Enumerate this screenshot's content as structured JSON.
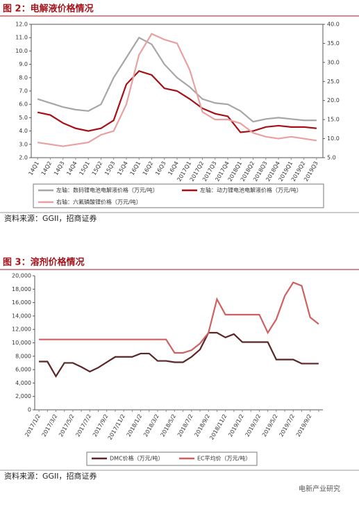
{
  "chart_data": [
    {
      "type": "line",
      "title": "图 2：电解液价格情况",
      "categories": [
        "14Q1",
        "14Q2",
        "14Q3",
        "14Q4",
        "15Q1",
        "15Q2",
        "15Q3",
        "15Q4",
        "16Q1",
        "16Q2",
        "16Q3",
        "16Q4",
        "2017Q1",
        "2017Q2",
        "2017Q3",
        "2017Q4",
        "2018Q1",
        "2018Q2",
        "2018Q3",
        "2018Q4",
        "2019Q1",
        "2019Q2",
        "2019Q3"
      ],
      "ylim": [
        2,
        12
      ],
      "yticks": [
        {
          "value": 2,
          "label": "2.0"
        },
        {
          "value": 3,
          "label": "3.0"
        },
        {
          "value": 4,
          "label": "4.0"
        },
        {
          "value": 5,
          "label": "5.0"
        },
        {
          "value": 6,
          "label": "6.0"
        },
        {
          "value": 7,
          "label": "7.0"
        },
        {
          "value": 8,
          "label": "8.0"
        },
        {
          "value": 9,
          "label": "9.0"
        },
        {
          "value": 10,
          "label": "10.0"
        },
        {
          "value": 11,
          "label": "11.0"
        },
        {
          "value": 12,
          "label": "12.0"
        }
      ],
      "y2lim": [
        5,
        40
      ],
      "y2ticks": [
        {
          "value": 5,
          "label": "5.0"
        },
        {
          "value": 10,
          "label": "10.0"
        },
        {
          "value": 15,
          "label": "15.0"
        },
        {
          "value": 20,
          "label": "20.0"
        },
        {
          "value": 25,
          "label": "25.0"
        },
        {
          "value": 30,
          "label": "30.0"
        },
        {
          "value": 35,
          "label": "35.0"
        },
        {
          "value": 40,
          "label": "40.0"
        }
      ],
      "series": [
        {
          "name": "左轴：数码锂电池电解液价格（万元/吨）",
          "color": "#a6a6a6",
          "values": [
            6.4,
            6.1,
            5.8,
            5.6,
            5.5,
            6.0,
            8.0,
            9.5,
            11.0,
            10.5,
            9.0,
            8.0,
            7.3,
            6.4,
            6.1,
            6.0,
            5.5,
            4.7,
            4.9,
            5.0,
            4.9,
            4.8,
            4.8
          ]
        },
        {
          "name": "左轴：动力锂电池电解液价格（万元/吨）",
          "color": "#a50f15",
          "values": [
            5.4,
            5.2,
            4.6,
            4.2,
            4.0,
            4.2,
            4.8,
            7.5,
            8.5,
            8.2,
            7.2,
            7.0,
            6.4,
            5.7,
            5.3,
            5.1,
            3.9,
            4.0,
            4.3,
            4.4,
            4.3,
            4.3,
            4.2
          ]
        },
        {
          "name": "右轴：六氟磷酸锂价格（万元/吨）",
          "color": "#e8a0a0",
          "axis": "y2",
          "values": [
            9.0,
            8.5,
            8.0,
            8.5,
            9.0,
            11.0,
            12.0,
            19.0,
            32.0,
            37.5,
            36.0,
            35.0,
            28.0,
            17.0,
            15.0,
            15.0,
            14.0,
            11.5,
            10.5,
            10.0,
            10.5,
            10.0,
            9.5
          ]
        }
      ],
      "source": "资料来源：GGII，招商证券"
    },
    {
      "type": "line",
      "title": "图 3：溶剂价格情况",
      "categories": [
        "2017/1/2",
        null,
        "2017/3/2",
        null,
        "2017/5/2",
        null,
        "2017/7/2",
        null,
        "2017/9/2",
        null,
        "2017/11/2",
        null,
        "2018/1/2",
        null,
        "2018/3/2",
        null,
        "2018/5/2",
        null,
        "2018/7/2",
        null,
        "2018/9/2",
        null,
        "2018/11/2",
        null,
        "2019/1/2",
        null,
        "2019/3/2",
        null,
        "2019/5/2",
        null,
        "2019/7/2",
        null,
        "2019/9/2",
        null
      ],
      "ylim": [
        0,
        20000
      ],
      "yticks": [
        0,
        {
          "value": 2000,
          "label": "2,000"
        },
        {
          "value": 4000,
          "label": "4,000"
        },
        {
          "value": 6000,
          "label": "6,000"
        },
        {
          "value": 8000,
          "label": "8,000"
        },
        {
          "value": 10000,
          "label": "10,000"
        },
        {
          "value": 12000,
          "label": "12,000"
        },
        {
          "value": 14000,
          "label": "14,000"
        },
        {
          "value": 16000,
          "label": "16,000"
        },
        {
          "value": 18000,
          "label": "18,000"
        },
        {
          "value": 20000,
          "label": "20,000"
        }
      ],
      "series": [
        {
          "name": "DMC价格（万元/吨）",
          "color": "#5a2626",
          "values": [
            7200,
            7200,
            5000,
            7000,
            7000,
            6400,
            5700,
            6300,
            7100,
            7900,
            7900,
            7900,
            8400,
            8400,
            7300,
            7300,
            7100,
            7100,
            7900,
            9000,
            11500,
            11500,
            10800,
            11300,
            10100,
            10100,
            10100,
            10100,
            7500,
            7500,
            7500,
            6900,
            6900,
            6900
          ]
        },
        {
          "name": "EC平均价（万元/吨）",
          "color": "#d06060",
          "values": [
            10500,
            10500,
            10500,
            10500,
            10500,
            10500,
            10500,
            10500,
            10500,
            10500,
            10500,
            10500,
            10500,
            10500,
            10500,
            10500,
            8500,
            8500,
            8900,
            9900,
            11500,
            16500,
            14200,
            14200,
            14200,
            14200,
            14200,
            11500,
            13500,
            17000,
            19000,
            18500,
            13800,
            12800
          ]
        }
      ],
      "source": "资料来源：GGII，招商证券"
    }
  ],
  "watermark": "电新产业研究"
}
